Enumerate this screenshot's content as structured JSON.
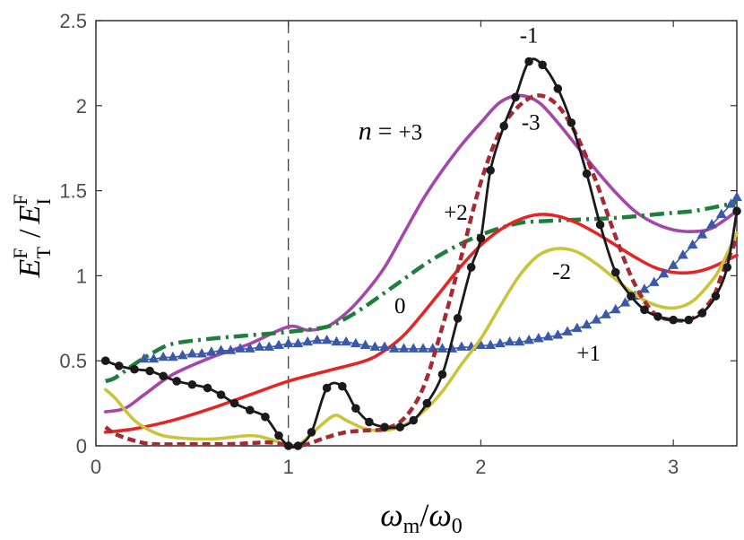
{
  "chart_data": {
    "type": "line",
    "xlim": [
      0,
      3.33
    ],
    "ylim": [
      0,
      2.5
    ],
    "x_ticks": [
      "0",
      "1",
      "2",
      "3"
    ],
    "y_ticks": [
      "0",
      "0.5",
      "1",
      "1.5",
      "2",
      "2.5"
    ],
    "x_tick_values": [
      0,
      1,
      2,
      3
    ],
    "y_tick_values": [
      0,
      0.5,
      1,
      1.5,
      2,
      2.5
    ],
    "grid": false,
    "legend": "none",
    "xlabel": {
      "main": "ω",
      "sub1": "m",
      "slash": "/",
      "main2": "ω",
      "sub2": "0"
    },
    "ylabel": {
      "main": "E",
      "sup1": "F",
      "sub1": "T",
      "slash": "/",
      "main2": "E",
      "sup2": "F",
      "sub2": "I"
    },
    "reference_line_x": 1,
    "series": [
      {
        "name": "n = +3",
        "color": "#a347a9",
        "style": "solid",
        "points": [
          [
            0.05,
            0.2
          ],
          [
            0.15,
            0.22
          ],
          [
            0.25,
            0.3
          ],
          [
            0.4,
            0.42
          ],
          [
            0.6,
            0.52
          ],
          [
            0.8,
            0.6
          ],
          [
            1.0,
            0.7
          ],
          [
            1.1,
            0.68
          ],
          [
            1.2,
            0.7
          ],
          [
            1.3,
            0.78
          ],
          [
            1.4,
            0.9
          ],
          [
            1.5,
            1.05
          ],
          [
            1.6,
            1.25
          ],
          [
            1.7,
            1.45
          ],
          [
            1.8,
            1.62
          ],
          [
            1.9,
            1.77
          ],
          [
            2.0,
            1.9
          ],
          [
            2.1,
            2.02
          ],
          [
            2.2,
            2.06
          ],
          [
            2.3,
            2.02
          ],
          [
            2.4,
            1.9
          ],
          [
            2.5,
            1.76
          ],
          [
            2.6,
            1.62
          ],
          [
            2.7,
            1.49
          ],
          [
            2.8,
            1.38
          ],
          [
            2.9,
            1.31
          ],
          [
            3.0,
            1.27
          ],
          [
            3.1,
            1.26
          ],
          [
            3.2,
            1.28
          ],
          [
            3.33,
            1.38
          ]
        ]
      },
      {
        "name": "+2",
        "color": "#1e7e3c",
        "style": "dashdot",
        "points": [
          [
            0.05,
            0.38
          ],
          [
            0.1,
            0.4
          ],
          [
            0.2,
            0.48
          ],
          [
            0.3,
            0.55
          ],
          [
            0.4,
            0.6
          ],
          [
            0.6,
            0.63
          ],
          [
            0.8,
            0.65
          ],
          [
            1.0,
            0.67
          ],
          [
            1.2,
            0.7
          ],
          [
            1.3,
            0.75
          ],
          [
            1.4,
            0.82
          ],
          [
            1.5,
            0.9
          ],
          [
            1.6,
            0.98
          ],
          [
            1.7,
            1.06
          ],
          [
            1.8,
            1.13
          ],
          [
            1.9,
            1.19
          ],
          [
            2.0,
            1.24
          ],
          [
            2.1,
            1.28
          ],
          [
            2.2,
            1.31
          ],
          [
            2.3,
            1.32
          ],
          [
            2.5,
            1.33
          ],
          [
            2.7,
            1.34
          ],
          [
            2.9,
            1.36
          ],
          [
            3.0,
            1.37
          ],
          [
            3.1,
            1.38
          ],
          [
            3.2,
            1.4
          ],
          [
            3.33,
            1.43
          ]
        ]
      },
      {
        "name": "0",
        "color": "#e52525",
        "style": "solid",
        "points": [
          [
            0.05,
            0.08
          ],
          [
            0.2,
            0.1
          ],
          [
            0.4,
            0.15
          ],
          [
            0.6,
            0.22
          ],
          [
            0.8,
            0.3
          ],
          [
            1.0,
            0.38
          ],
          [
            1.2,
            0.44
          ],
          [
            1.4,
            0.5
          ],
          [
            1.5,
            0.56
          ],
          [
            1.6,
            0.65
          ],
          [
            1.7,
            0.78
          ],
          [
            1.8,
            0.92
          ],
          [
            1.9,
            1.06
          ],
          [
            2.0,
            1.18
          ],
          [
            2.1,
            1.27
          ],
          [
            2.2,
            1.33
          ],
          [
            2.3,
            1.36
          ],
          [
            2.4,
            1.35
          ],
          [
            2.5,
            1.31
          ],
          [
            2.6,
            1.25
          ],
          [
            2.7,
            1.18
          ],
          [
            2.8,
            1.11
          ],
          [
            2.9,
            1.05
          ],
          [
            3.0,
            1.02
          ],
          [
            3.1,
            1.02
          ],
          [
            3.2,
            1.05
          ],
          [
            3.33,
            1.12
          ]
        ]
      },
      {
        "name": "+1",
        "color": "#3a5aa8",
        "style": "triangles",
        "points": [
          [
            0.25,
            0.51
          ],
          [
            0.3,
            0.51
          ],
          [
            0.35,
            0.52
          ],
          [
            0.4,
            0.52
          ],
          [
            0.45,
            0.53
          ],
          [
            0.5,
            0.54
          ],
          [
            0.55,
            0.54
          ],
          [
            0.6,
            0.55
          ],
          [
            0.65,
            0.56
          ],
          [
            0.7,
            0.56
          ],
          [
            0.75,
            0.57
          ],
          [
            0.8,
            0.57
          ],
          [
            0.85,
            0.58
          ],
          [
            0.9,
            0.58
          ],
          [
            0.95,
            0.59
          ],
          [
            1.0,
            0.6
          ],
          [
            1.05,
            0.6
          ],
          [
            1.1,
            0.61
          ],
          [
            1.15,
            0.62
          ],
          [
            1.2,
            0.62
          ],
          [
            1.25,
            0.61
          ],
          [
            1.3,
            0.61
          ],
          [
            1.35,
            0.6
          ],
          [
            1.4,
            0.59
          ],
          [
            1.45,
            0.58
          ],
          [
            1.5,
            0.58
          ],
          [
            1.55,
            0.57
          ],
          [
            1.6,
            0.57
          ],
          [
            1.65,
            0.57
          ],
          [
            1.7,
            0.57
          ],
          [
            1.75,
            0.57
          ],
          [
            1.8,
            0.57
          ],
          [
            1.85,
            0.57
          ],
          [
            1.9,
            0.58
          ],
          [
            1.95,
            0.58
          ],
          [
            2.0,
            0.59
          ],
          [
            2.05,
            0.59
          ],
          [
            2.1,
            0.6
          ],
          [
            2.15,
            0.61
          ],
          [
            2.2,
            0.61
          ],
          [
            2.25,
            0.62
          ],
          [
            2.3,
            0.63
          ],
          [
            2.35,
            0.64
          ],
          [
            2.4,
            0.65
          ],
          [
            2.45,
            0.67
          ],
          [
            2.5,
            0.69
          ],
          [
            2.55,
            0.71
          ],
          [
            2.6,
            0.74
          ],
          [
            2.65,
            0.77
          ],
          [
            2.7,
            0.8
          ],
          [
            2.75,
            0.84
          ],
          [
            2.8,
            0.88
          ],
          [
            2.85,
            0.92
          ],
          [
            2.9,
            0.96
          ],
          [
            2.95,
            1.01
          ],
          [
            3.0,
            1.06
          ],
          [
            3.05,
            1.12
          ],
          [
            3.1,
            1.18
          ],
          [
            3.15,
            1.24
          ],
          [
            3.2,
            1.3
          ],
          [
            3.25,
            1.36
          ],
          [
            3.3,
            1.42
          ],
          [
            3.33,
            1.46
          ]
        ]
      },
      {
        "name": "-2",
        "color": "#c8c43c",
        "style": "solid",
        "points": [
          [
            0.05,
            0.33
          ],
          [
            0.1,
            0.28
          ],
          [
            0.2,
            0.15
          ],
          [
            0.3,
            0.08
          ],
          [
            0.4,
            0.05
          ],
          [
            0.6,
            0.04
          ],
          [
            0.8,
            0.06
          ],
          [
            0.9,
            0.04
          ],
          [
            1.0,
            0.0
          ],
          [
            1.05,
            0.0
          ],
          [
            1.1,
            0.05
          ],
          [
            1.2,
            0.15
          ],
          [
            1.25,
            0.18
          ],
          [
            1.3,
            0.15
          ],
          [
            1.4,
            0.1
          ],
          [
            1.5,
            0.09
          ],
          [
            1.6,
            0.12
          ],
          [
            1.7,
            0.2
          ],
          [
            1.8,
            0.32
          ],
          [
            1.9,
            0.48
          ],
          [
            2.0,
            0.63
          ],
          [
            2.1,
            0.82
          ],
          [
            2.2,
            1.0
          ],
          [
            2.3,
            1.12
          ],
          [
            2.4,
            1.16
          ],
          [
            2.5,
            1.14
          ],
          [
            2.6,
            1.07
          ],
          [
            2.7,
            0.98
          ],
          [
            2.8,
            0.89
          ],
          [
            2.9,
            0.83
          ],
          [
            3.0,
            0.81
          ],
          [
            3.1,
            0.85
          ],
          [
            3.2,
            0.97
          ],
          [
            3.25,
            1.06
          ],
          [
            3.33,
            1.25
          ]
        ]
      },
      {
        "name": "-3",
        "color": "#a52a33",
        "style": "dashed",
        "points": [
          [
            0.05,
            0.11
          ],
          [
            0.1,
            0.07
          ],
          [
            0.2,
            0.03
          ],
          [
            0.3,
            0.01
          ],
          [
            0.5,
            0.01
          ],
          [
            0.7,
            0.01
          ],
          [
            0.9,
            0.02
          ],
          [
            1.0,
            0.0
          ],
          [
            1.05,
            0.0
          ],
          [
            1.1,
            0.01
          ],
          [
            1.2,
            0.05
          ],
          [
            1.3,
            0.08
          ],
          [
            1.4,
            0.09
          ],
          [
            1.5,
            0.1
          ],
          [
            1.6,
            0.16
          ],
          [
            1.7,
            0.34
          ],
          [
            1.8,
            0.7
          ],
          [
            1.9,
            1.12
          ],
          [
            2.0,
            1.55
          ],
          [
            2.1,
            1.85
          ],
          [
            2.2,
            2.0
          ],
          [
            2.3,
            2.06
          ],
          [
            2.4,
            2.0
          ],
          [
            2.5,
            1.82
          ],
          [
            2.6,
            1.55
          ],
          [
            2.7,
            1.23
          ],
          [
            2.8,
            0.95
          ],
          [
            2.9,
            0.78
          ],
          [
            3.0,
            0.74
          ],
          [
            3.1,
            0.75
          ],
          [
            3.2,
            0.86
          ],
          [
            3.25,
            1.0
          ],
          [
            3.33,
            1.22
          ]
        ]
      },
      {
        "name": "-1",
        "color": "#1a1a1a",
        "style": "circles",
        "points": [
          [
            0.05,
            0.5
          ],
          [
            0.12,
            0.47
          ],
          [
            0.2,
            0.45
          ],
          [
            0.28,
            0.44
          ],
          [
            0.35,
            0.41
          ],
          [
            0.42,
            0.38
          ],
          [
            0.5,
            0.36
          ],
          [
            0.58,
            0.34
          ],
          [
            0.65,
            0.3
          ],
          [
            0.72,
            0.25
          ],
          [
            0.8,
            0.21
          ],
          [
            0.88,
            0.17
          ],
          [
            0.95,
            0.06
          ],
          [
            1.0,
            0.0
          ],
          [
            1.05,
            0.0
          ],
          [
            1.12,
            0.08
          ],
          [
            1.2,
            0.34
          ],
          [
            1.28,
            0.35
          ],
          [
            1.35,
            0.22
          ],
          [
            1.42,
            0.14
          ],
          [
            1.5,
            0.11
          ],
          [
            1.58,
            0.11
          ],
          [
            1.65,
            0.15
          ],
          [
            1.72,
            0.25
          ],
          [
            1.8,
            0.42
          ],
          [
            1.88,
            0.75
          ],
          [
            1.95,
            1.05
          ],
          [
            2.0,
            1.22
          ],
          [
            2.05,
            1.62
          ],
          [
            2.12,
            1.88
          ],
          [
            2.18,
            2.05
          ],
          [
            2.25,
            2.26
          ],
          [
            2.32,
            2.24
          ],
          [
            2.4,
            2.1
          ],
          [
            2.47,
            1.9
          ],
          [
            2.55,
            1.6
          ],
          [
            2.62,
            1.3
          ],
          [
            2.7,
            1.02
          ],
          [
            2.78,
            0.88
          ],
          [
            2.85,
            0.8
          ],
          [
            2.92,
            0.76
          ],
          [
            3.0,
            0.74
          ],
          [
            3.08,
            0.74
          ],
          [
            3.15,
            0.78
          ],
          [
            3.22,
            0.88
          ],
          [
            3.28,
            1.05
          ],
          [
            3.33,
            1.38
          ]
        ]
      }
    ],
    "annotations": [
      {
        "name": "n = +3",
        "prefix": "n",
        "equals": " = ",
        "value": "+3",
        "x": 1.53,
        "y": 1.8
      },
      {
        "name": "-1",
        "value": "-1",
        "x": 2.25,
        "y": 2.37
      },
      {
        "name": "-3",
        "value": "-3",
        "x": 2.26,
        "y": 1.86
      },
      {
        "name": "+2",
        "value": "+2",
        "x": 1.87,
        "y": 1.33
      },
      {
        "name": "0",
        "value": "0",
        "x": 1.58,
        "y": 0.78
      },
      {
        "name": "-2",
        "value": "-2",
        "x": 2.42,
        "y": 0.98
      },
      {
        "name": "+1",
        "value": "+1",
        "x": 2.56,
        "y": 0.5
      }
    ]
  }
}
